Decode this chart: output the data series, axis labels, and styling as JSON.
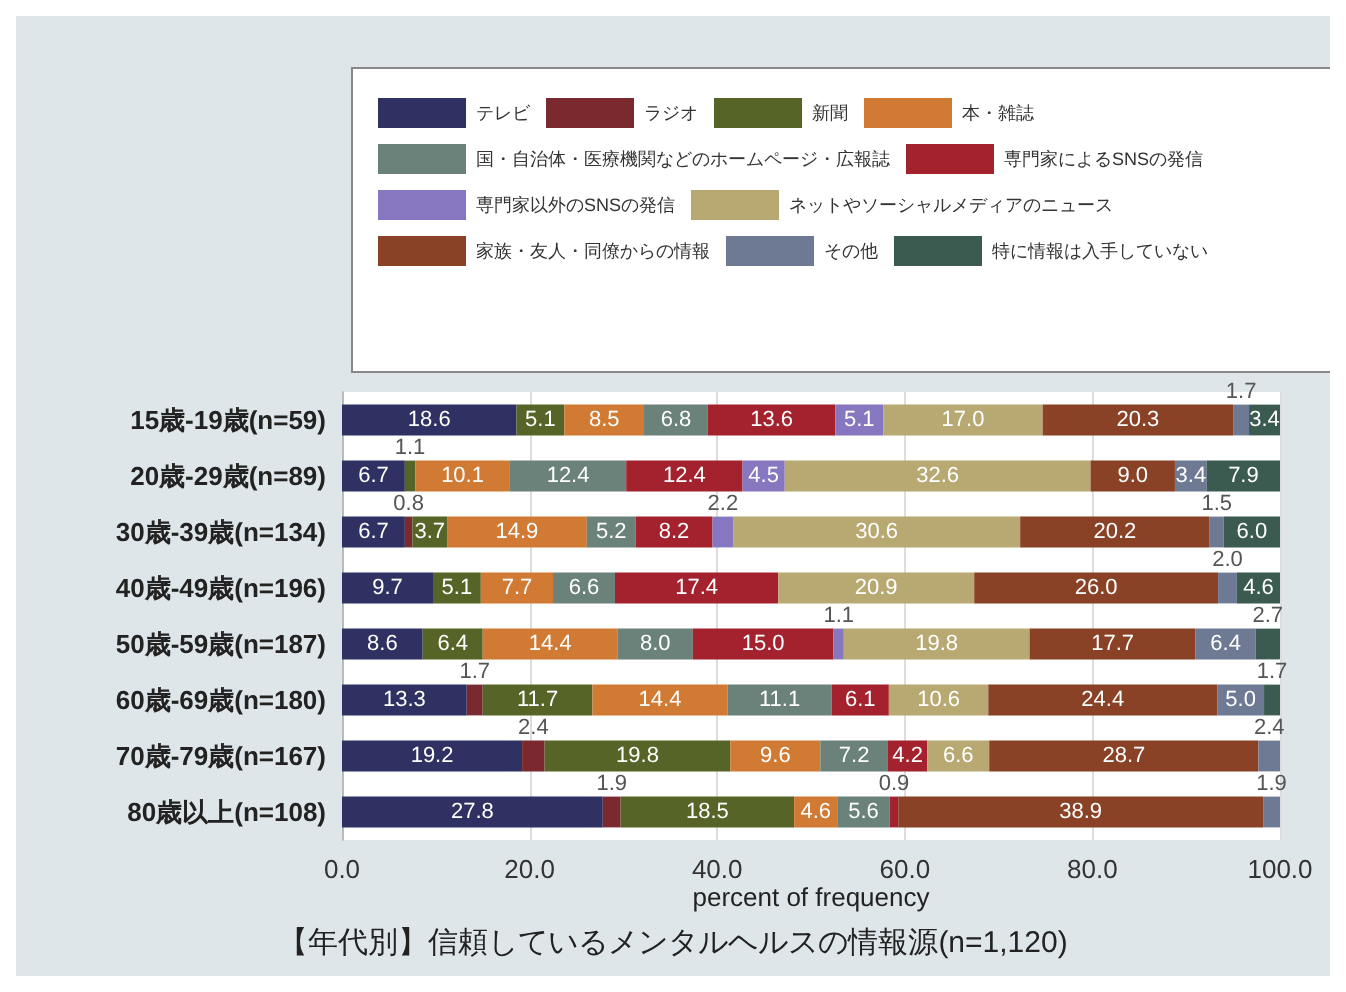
{
  "chart_data": {
    "type": "bar",
    "orientation": "horizontal",
    "stacked": true,
    "title": "【年代別】信頼しているメンタルヘルスの情報源(n=1,120)",
    "xlabel": "percent of frequency",
    "categories": [
      "15歳-19歳(n=59)",
      "20歳-29歳(n=89)",
      "30歳-39歳(n=134)",
      "40歳-49歳(n=196)",
      "50歳-59歳(n=187)",
      "60歳-69歳(n=180)",
      "70歳-79歳(n=167)",
      "80歳以上(n=108)"
    ],
    "series": [
      {
        "name": "テレビ",
        "color": "#2e3161",
        "values": [
          18.6,
          6.7,
          6.7,
          9.7,
          8.6,
          13.3,
          19.2,
          27.8
        ],
        "value_labels": [
          "18.6",
          "6.7",
          "6.7",
          "9.7",
          "8.6",
          "13.3",
          "19.2",
          "27.8"
        ]
      },
      {
        "name": "ラジオ",
        "color": "#7a2a2e",
        "values": [
          null,
          null,
          0.8,
          null,
          null,
          1.7,
          2.4,
          1.9
        ],
        "value_labels": [
          null,
          null,
          "0.8",
          null,
          null,
          "1.7",
          "2.4",
          "1.9"
        ]
      },
      {
        "name": "新聞",
        "color": "#566427",
        "values": [
          5.1,
          1.1,
          3.7,
          5.1,
          6.4,
          11.7,
          19.8,
          18.5
        ],
        "value_labels": [
          "5.1",
          "1.1",
          "3.7",
          "5.1",
          "6.4",
          "11.7",
          "19.8",
          "18.5"
        ]
      },
      {
        "name": "本・雑誌",
        "color": "#d07a34",
        "values": [
          8.5,
          10.1,
          14.9,
          7.7,
          14.4,
          14.4,
          9.6,
          4.6
        ],
        "value_labels": [
          "8.5",
          "10.1",
          "14.9",
          "7.7",
          "14.4",
          "14.4",
          "9.6",
          "4.6"
        ]
      },
      {
        "name": "国・自治体・医療機関などのホームページ・広報誌",
        "color": "#6a8279",
        "values": [
          6.8,
          12.4,
          5.2,
          6.6,
          8.0,
          11.1,
          7.2,
          5.6
        ],
        "value_labels": [
          "6.8",
          "12.4",
          "5.2",
          "6.6",
          "8.0",
          "11.1",
          "7.2",
          "5.6"
        ]
      },
      {
        "name": "専門家によるSNSの発信",
        "color": "#a3222e",
        "values": [
          13.6,
          12.4,
          8.2,
          17.4,
          15.0,
          6.1,
          4.2,
          0.9
        ],
        "value_labels": [
          "13.6",
          "12.4",
          "8.2",
          "17.4",
          "15.0",
          "6.1",
          "4.2",
          "0.9"
        ]
      },
      {
        "name": "専門家以外のSNSの発信",
        "color": "#8677c0",
        "values": [
          5.1,
          4.5,
          2.2,
          null,
          1.1,
          null,
          null,
          null
        ],
        "value_labels": [
          "5.1",
          "4.5",
          "2.2",
          null,
          "1.1",
          null,
          null,
          null
        ]
      },
      {
        "name": "ネットやソーシャルメディアのニュース",
        "color": "#b8a972",
        "values": [
          17.0,
          32.6,
          30.6,
          20.9,
          19.8,
          10.6,
          6.6,
          null
        ],
        "value_labels": [
          "17.0",
          "32.6",
          "30.6",
          "20.9",
          "19.8",
          "10.6",
          "6.6",
          null
        ]
      },
      {
        "name": "家族・友人・同僚からの情報",
        "color": "#8a4226",
        "values": [
          20.3,
          9.0,
          20.2,
          26.0,
          17.7,
          24.4,
          28.7,
          38.9
        ],
        "value_labels": [
          "20.3",
          "9.0",
          "20.2",
          "26.0",
          "17.7",
          "24.4",
          "28.7",
          "38.9"
        ]
      },
      {
        "name": "その他",
        "color": "#6e7a93",
        "values": [
          1.7,
          3.4,
          1.5,
          2.0,
          6.4,
          5.0,
          2.4,
          1.9
        ],
        "value_labels": [
          "1.7",
          "3.4",
          "1.5",
          "2.0",
          "6.4",
          "5.0",
          "2.4",
          "1.9"
        ]
      },
      {
        "name": "特に情報は入手していない",
        "color": "#3b5a50",
        "values": [
          3.4,
          7.9,
          6.0,
          4.6,
          2.7,
          1.7,
          null,
          null
        ],
        "value_labels": [
          "3.4",
          "7.9",
          "6.0",
          "4.6",
          "2.7",
          "1.7",
          null,
          null
        ]
      }
    ],
    "xlim": [
      0,
      100
    ],
    "xticks": [
      {
        "value": 0,
        "label": "0.0"
      },
      {
        "value": 20,
        "label": "20.0"
      },
      {
        "value": 40,
        "label": "40.0"
      },
      {
        "value": 60,
        "label": "60.0"
      },
      {
        "value": 80,
        "label": "80.0"
      },
      {
        "value": 100,
        "label": "100.0"
      }
    ],
    "grid": "x",
    "legend": "top"
  }
}
